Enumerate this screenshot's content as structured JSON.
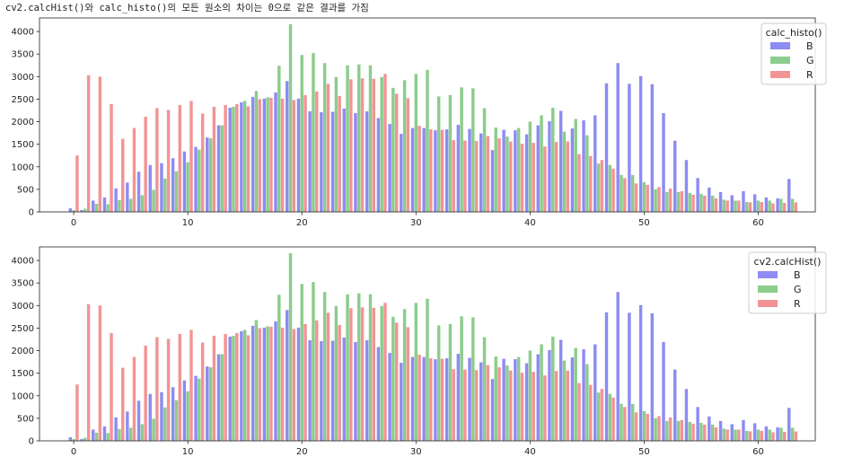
{
  "caption": "cv2.calcHist()와 calc_histo()의 모든 원소의 차이는 0으로 같은 결과를 가짐",
  "colors": {
    "B": "#8c8cf2",
    "G": "#8ccc8c",
    "R": "#f29494"
  },
  "chart_data": [
    {
      "type": "bar",
      "title": "",
      "legend_title": "calc_histo()",
      "legend_position": "top-right",
      "grid": false,
      "xlim": [
        -3,
        65
      ],
      "ylim": [
        0,
        4300
      ],
      "xticks": [
        0,
        10,
        20,
        30,
        40,
        50,
        60
      ],
      "yticks": [
        0,
        500,
        1000,
        1500,
        2000,
        2500,
        3000,
        3500,
        4000
      ],
      "series": [
        {
          "name": "B",
          "values": [
            80,
            40,
            250,
            320,
            520,
            650,
            890,
            1040,
            1080,
            1190,
            1340,
            1440,
            1650,
            1920,
            2310,
            2430,
            2550,
            2510,
            2650,
            2900,
            2510,
            2230,
            2210,
            2220,
            2290,
            2190,
            2230,
            2080,
            1950,
            1730,
            1860,
            1860,
            1810,
            1830,
            1930,
            1840,
            1740,
            1370,
            1820,
            1810,
            1720,
            1920,
            2010,
            2240,
            1850,
            2030,
            2140,
            2850,
            3300,
            2840,
            3010,
            2830,
            2190,
            1580,
            1150,
            750,
            540,
            440,
            370,
            460,
            390,
            320,
            300,
            730
          ]
        },
        {
          "name": "G",
          "values": [
            40,
            70,
            180,
            170,
            260,
            290,
            370,
            490,
            740,
            900,
            1100,
            1380,
            1630,
            1920,
            2330,
            2460,
            2680,
            2540,
            3240,
            4160,
            3480,
            3520,
            3300,
            2990,
            3250,
            3270,
            3250,
            2990,
            2750,
            2920,
            3060,
            3150,
            2560,
            2590,
            2760,
            2740,
            2300,
            1870,
            1670,
            1860,
            2000,
            2140,
            2310,
            1780,
            2060,
            1700,
            1070,
            1040,
            820,
            820,
            660,
            500,
            440,
            440,
            420,
            400,
            360,
            270,
            250,
            220,
            250,
            250,
            290,
            290
          ]
        },
        {
          "name": "R",
          "values": [
            1250,
            3030,
            3000,
            2390,
            1620,
            1860,
            2110,
            2300,
            2260,
            2370,
            2460,
            2180,
            2330,
            2370,
            2390,
            2340,
            2500,
            2530,
            2510,
            2480,
            2590,
            2670,
            2840,
            2570,
            2940,
            2960,
            2950,
            3060,
            2620,
            2520,
            1910,
            1830,
            1820,
            1590,
            1580,
            1570,
            1680,
            1630,
            1560,
            1510,
            1530,
            1450,
            1550,
            1560,
            1280,
            1240,
            1150,
            960,
            750,
            630,
            600,
            550,
            520,
            460,
            380,
            360,
            300,
            250,
            250,
            210,
            220,
            190,
            200,
            210
          ]
        }
      ]
    },
    {
      "type": "bar",
      "title": "",
      "legend_title": "cv2.calcHist()",
      "legend_position": "top-right",
      "grid": false,
      "xlim": [
        -3,
        65
      ],
      "ylim": [
        0,
        4300
      ],
      "xticks": [
        0,
        10,
        20,
        30,
        40,
        50,
        60
      ],
      "yticks": [
        0,
        500,
        1000,
        1500,
        2000,
        2500,
        3000,
        3500,
        4000
      ],
      "series": [
        {
          "name": "B",
          "values": [
            80,
            40,
            250,
            320,
            520,
            650,
            890,
            1040,
            1080,
            1190,
            1340,
            1440,
            1650,
            1920,
            2310,
            2430,
            2550,
            2510,
            2650,
            2900,
            2510,
            2230,
            2210,
            2220,
            2290,
            2190,
            2230,
            2080,
            1950,
            1730,
            1860,
            1860,
            1810,
            1830,
            1930,
            1840,
            1740,
            1370,
            1820,
            1810,
            1720,
            1920,
            2010,
            2240,
            1850,
            2030,
            2140,
            2850,
            3300,
            2840,
            3010,
            2830,
            2190,
            1580,
            1150,
            750,
            540,
            440,
            370,
            460,
            390,
            320,
            300,
            730
          ]
        },
        {
          "name": "G",
          "values": [
            40,
            70,
            180,
            170,
            260,
            290,
            370,
            490,
            740,
            900,
            1100,
            1380,
            1630,
            1920,
            2330,
            2460,
            2680,
            2540,
            3240,
            4160,
            3480,
            3520,
            3300,
            2990,
            3250,
            3270,
            3250,
            2990,
            2750,
            2920,
            3060,
            3150,
            2560,
            2590,
            2760,
            2740,
            2300,
            1870,
            1670,
            1860,
            2000,
            2140,
            2310,
            1780,
            2060,
            1700,
            1070,
            1040,
            820,
            820,
            660,
            500,
            440,
            440,
            420,
            400,
            360,
            270,
            250,
            220,
            250,
            250,
            290,
            290
          ]
        },
        {
          "name": "R",
          "values": [
            1250,
            3030,
            3000,
            2390,
            1620,
            1860,
            2110,
            2300,
            2260,
            2370,
            2460,
            2180,
            2330,
            2370,
            2390,
            2340,
            2500,
            2530,
            2510,
            2480,
            2590,
            2670,
            2840,
            2570,
            2940,
            2960,
            2950,
            3060,
            2620,
            2520,
            1910,
            1830,
            1820,
            1590,
            1580,
            1570,
            1680,
            1630,
            1560,
            1510,
            1530,
            1450,
            1550,
            1560,
            1280,
            1240,
            1150,
            960,
            750,
            630,
            600,
            550,
            520,
            460,
            380,
            360,
            300,
            250,
            250,
            210,
            220,
            190,
            200,
            210
          ]
        }
      ]
    }
  ]
}
